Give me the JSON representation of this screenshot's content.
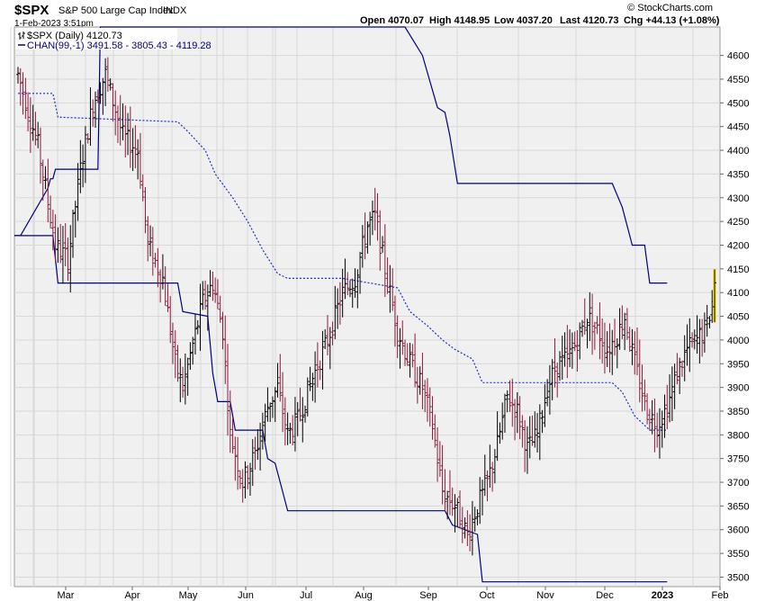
{
  "header": {
    "symbol": "$SPX",
    "name": "S&P 500 Large Cap Index",
    "exchange": "INDX",
    "date": "1-Feb-2023 3:51pm",
    "open": "Open 4070.07",
    "high": "High 4148.95",
    "low": "Low 4037.20",
    "last": "Last 4120.73",
    "chg": "Chg +44.13 (+1.08%)",
    "copyright": "© StockCharts.com"
  },
  "legend": {
    "price": "$SPX (Daily) 4120.73",
    "channel": "CHAN(99,-1) 3491.58 - 3805.43 - 4119.28"
  },
  "colors": {
    "up": "#000000",
    "down": "#8b1a3a",
    "channel": "#00007f",
    "mid": "#1f2fbf",
    "grid": "#d8d8d8",
    "plot_bg": "#f0f0f0",
    "highlight": "#f5e642"
  },
  "chart_data": {
    "type": "ohlc",
    "ylim": [
      3480,
      4660
    ],
    "y_ticks": [
      3500,
      3550,
      3600,
      3650,
      3700,
      3750,
      3800,
      3850,
      3900,
      3950,
      4000,
      4050,
      4100,
      4150,
      4200,
      4250,
      4300,
      4350,
      4400,
      4450,
      4500,
      4550,
      4600
    ],
    "x_labels": [
      "Mar",
      "Apr",
      "May",
      "Jun",
      "Jul",
      "Aug",
      "Sep",
      "Oct",
      "Nov",
      "Dec",
      "2023",
      "Feb"
    ],
    "price_waypoints": [
      [
        0,
        4560
      ],
      [
        8,
        4410
      ],
      [
        15,
        4200
      ],
      [
        20,
        4170
      ],
      [
        25,
        4360
      ],
      [
        30,
        4500
      ],
      [
        35,
        4560
      ],
      [
        42,
        4430
      ],
      [
        48,
        4400
      ],
      [
        52,
        4200
      ],
      [
        58,
        4130
      ],
      [
        63,
        3950
      ],
      [
        66,
        3900
      ],
      [
        70,
        3990
      ],
      [
        74,
        4080
      ],
      [
        78,
        4120
      ],
      [
        82,
        4020
      ],
      [
        85,
        3800
      ],
      [
        90,
        3700
      ],
      [
        95,
        3760
      ],
      [
        100,
        3860
      ],
      [
        104,
        3900
      ],
      [
        108,
        3800
      ],
      [
        112,
        3830
      ],
      [
        118,
        3920
      ],
      [
        124,
        4000
      ],
      [
        130,
        4100
      ],
      [
        135,
        4130
      ],
      [
        140,
        4240
      ],
      [
        143,
        4260
      ],
      [
        147,
        4150
      ],
      [
        152,
        4020
      ],
      [
        157,
        3950
      ],
      [
        162,
        3900
      ],
      [
        166,
        3820
      ],
      [
        170,
        3680
      ],
      [
        175,
        3650
      ],
      [
        180,
        3590
      ],
      [
        184,
        3650
      ],
      [
        188,
        3700
      ],
      [
        192,
        3780
      ],
      [
        196,
        3880
      ],
      [
        200,
        3850
      ],
      [
        204,
        3770
      ],
      [
        208,
        3800
      ],
      [
        212,
        3900
      ],
      [
        216,
        3950
      ],
      [
        220,
        3960
      ],
      [
        224,
        4000
      ],
      [
        228,
        4050
      ],
      [
        232,
        4020
      ],
      [
        236,
        3980
      ],
      [
        240,
        4010
      ],
      [
        243,
        4050
      ],
      [
        247,
        3950
      ],
      [
        252,
        3850
      ],
      [
        256,
        3820
      ],
      [
        260,
        3860
      ],
      [
        264,
        3930
      ],
      [
        268,
        3980
      ],
      [
        272,
        4000
      ],
      [
        276,
        4030
      ],
      [
        278,
        4080
      ]
    ],
    "channel_upper": [
      [
        -10,
        4220
      ],
      [
        1,
        4220
      ],
      [
        12,
        4320
      ],
      [
        13,
        4340
      ],
      [
        14,
        4340
      ],
      [
        15,
        4360
      ],
      [
        16,
        4360
      ],
      [
        32,
        4360
      ],
      [
        33,
        4760
      ],
      [
        155,
        4760
      ],
      [
        162,
        4600
      ],
      [
        168,
        4490
      ],
      [
        171,
        4480
      ],
      [
        173,
        4430
      ],
      [
        176,
        4330
      ],
      [
        238,
        4330
      ],
      [
        242,
        4280
      ],
      [
        246,
        4200
      ],
      [
        251,
        4200
      ],
      [
        253,
        4120
      ],
      [
        260,
        4120
      ]
    ],
    "channel_lower": [
      [
        -10,
        4220
      ],
      [
        14,
        4220
      ],
      [
        16,
        4120
      ],
      [
        64,
        4120
      ],
      [
        66,
        4060
      ],
      [
        76,
        4050
      ],
      [
        78,
        3930
      ],
      [
        80,
        3870
      ],
      [
        85,
        3870
      ],
      [
        87,
        3810
      ],
      [
        98,
        3810
      ],
      [
        100,
        3750
      ],
      [
        103,
        3740
      ],
      [
        106,
        3680
      ],
      [
        108,
        3640
      ],
      [
        171,
        3640
      ],
      [
        174,
        3610
      ],
      [
        184,
        3590
      ],
      [
        186,
        3490
      ],
      [
        260,
        3490
      ]
    ],
    "channel_mid": [
      [
        0,
        4520
      ],
      [
        14,
        4520
      ],
      [
        16,
        4470
      ],
      [
        64,
        4460
      ],
      [
        68,
        4440
      ],
      [
        75,
        4400
      ],
      [
        79,
        4350
      ],
      [
        86,
        4300
      ],
      [
        92,
        4250
      ],
      [
        98,
        4190
      ],
      [
        104,
        4140
      ],
      [
        108,
        4130
      ],
      [
        130,
        4130
      ],
      [
        152,
        4110
      ],
      [
        157,
        4060
      ],
      [
        164,
        4030
      ],
      [
        170,
        4000
      ],
      [
        175,
        3980
      ],
      [
        182,
        3960
      ],
      [
        186,
        3910
      ],
      [
        238,
        3910
      ],
      [
        242,
        3890
      ],
      [
        247,
        3840
      ],
      [
        253,
        3810
      ],
      [
        260,
        3810
      ]
    ]
  }
}
